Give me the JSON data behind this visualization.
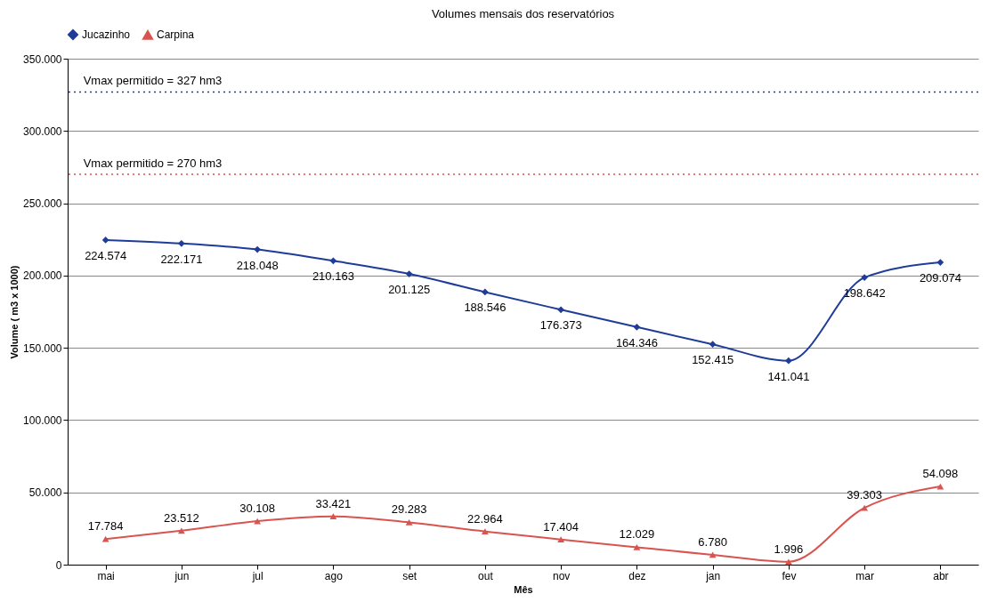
{
  "chart_data": {
    "type": "line",
    "title": "Volumes mensais dos reservatórios",
    "xlabel": "Mês",
    "ylabel": "Volume ( m3 x 1000)",
    "categories": [
      "mai",
      "jun",
      "jul",
      "ago",
      "set",
      "out",
      "nov",
      "dez",
      "jan",
      "fev",
      "mar",
      "abr"
    ],
    "series": [
      {
        "name": "Jucazinho",
        "color": "#1f3c99",
        "marker": "diamond",
        "values": [
          224574,
          222171,
          218048,
          210163,
          201125,
          188546,
          176373,
          164346,
          152415,
          141041,
          198642,
          209074
        ],
        "value_labels": [
          "224.574",
          "222.171",
          "218.048",
          "210.163",
          "201.125",
          "188.546",
          "176.373",
          "164.346",
          "152.415",
          "141.041",
          "198.642",
          "209.074"
        ]
      },
      {
        "name": "Carpina",
        "color": "#d9534f",
        "marker": "triangle",
        "values": [
          17784,
          23512,
          30108,
          33421,
          29283,
          22964,
          17404,
          12029,
          6780,
          1996,
          39303,
          54098
        ],
        "value_labels": [
          "17.784",
          "23.512",
          "30.108",
          "33.421",
          "29.283",
          "22.964",
          "17.404",
          "12.029",
          "6.780",
          "1.996",
          "39.303",
          "54.098"
        ]
      }
    ],
    "ref_lines": [
      {
        "axis": "y",
        "value": 327000,
        "color": "#1f3c99",
        "line_style": "dotted"
      },
      {
        "axis": "y",
        "value": 270000,
        "color": "#d9534f",
        "line_style": "dotted"
      }
    ],
    "annotations": [
      {
        "text": "Vmax permitido = 327 hm3",
        "x": "mai",
        "y": 327000
      },
      {
        "text": "Vmax permitido = 270 hm3",
        "x": "mai",
        "y": 270000
      }
    ],
    "ylim": [
      0,
      350000
    ],
    "yticks": [
      0,
      {
        "value": 50000,
        "label": "50.000"
      },
      {
        "value": 100000,
        "label": "100.000"
      },
      {
        "value": 150000,
        "label": "150.000"
      },
      {
        "value": 200000,
        "label": "200.000"
      },
      {
        "value": 250000,
        "label": "250.000"
      },
      {
        "value": 300000,
        "label": "300.000"
      },
      {
        "value": 350000,
        "label": "350.000"
      }
    ],
    "grid": "y",
    "legend": "top"
  }
}
